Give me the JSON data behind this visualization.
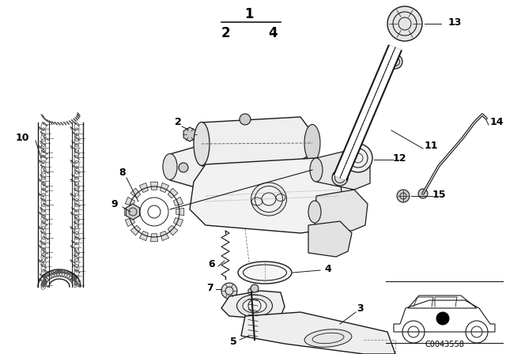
{
  "bg_color": "#ffffff",
  "line_color": "#1a1a1a",
  "fraction_top": "1",
  "fraction_bottom_left": "2",
  "fraction_bottom_right": "4",
  "diagram_code": "C0043558",
  "figsize": [
    6.4,
    4.48
  ],
  "dpi": 100
}
